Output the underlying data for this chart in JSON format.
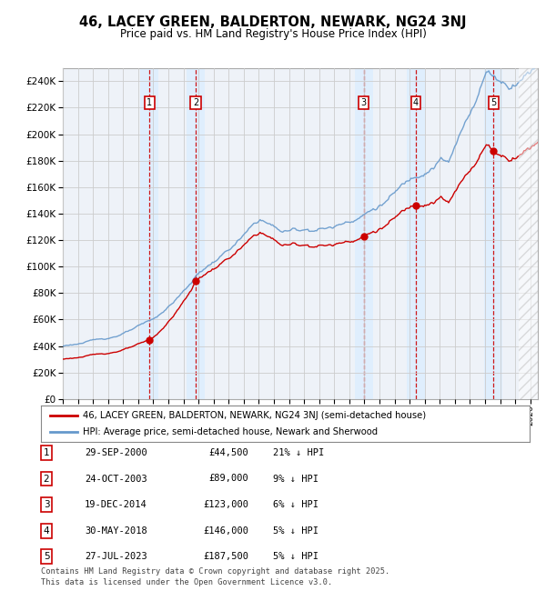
{
  "title": "46, LACEY GREEN, BALDERTON, NEWARK, NG24 3NJ",
  "subtitle": "Price paid vs. HM Land Registry's House Price Index (HPI)",
  "ylim": [
    0,
    250000
  ],
  "yticks": [
    0,
    20000,
    40000,
    60000,
    80000,
    100000,
    120000,
    140000,
    160000,
    180000,
    200000,
    220000,
    240000
  ],
  "xlim_start": 1995.0,
  "xlim_end": 2026.5,
  "sale_dates_num": [
    2000.747,
    2003.813,
    2014.963,
    2018.414,
    2023.569
  ],
  "sale_prices": [
    44500,
    89000,
    123000,
    146000,
    187500
  ],
  "sale_labels": [
    "1",
    "2",
    "3",
    "4",
    "5"
  ],
  "sale_dates_str": [
    "29-SEP-2000",
    "24-OCT-2003",
    "19-DEC-2014",
    "30-MAY-2018",
    "27-JUL-2023"
  ],
  "sale_pct": [
    "21%",
    "9%",
    "6%",
    "5%",
    "5%"
  ],
  "hpi_color": "#6699cc",
  "price_color": "#cc0000",
  "grid_color": "#cccccc",
  "vline_color": "#cc0000",
  "vspan_color": "#ddeeff",
  "legend_label_price": "46, LACEY GREEN, BALDERTON, NEWARK, NG24 3NJ (semi-detached house)",
  "legend_label_hpi": "HPI: Average price, semi-detached house, Newark and Sherwood",
  "footer": "Contains HM Land Registry data © Crown copyright and database right 2025.\nThis data is licensed under the Open Government Licence v3.0.",
  "background_color": "#ffffff",
  "plot_bg_color": "#eef2f8"
}
